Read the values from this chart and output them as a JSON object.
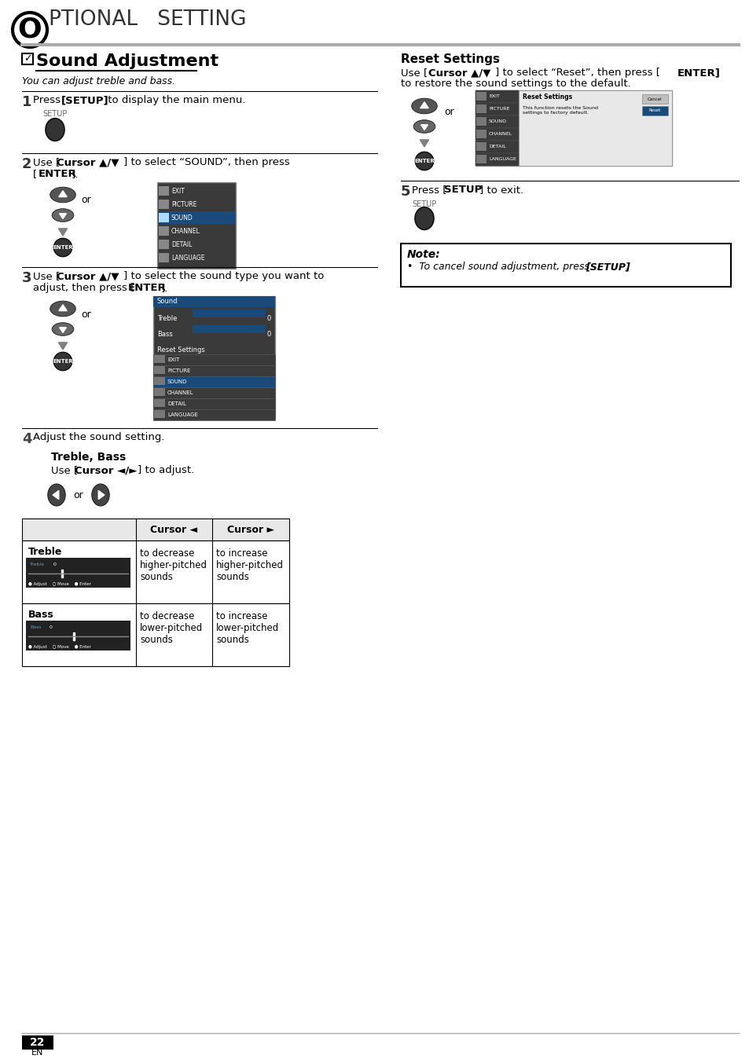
{
  "title_letter": "O",
  "title_text": "PTIONAL   SETTING",
  "section_title": "Sound Adjustment",
  "section_subtitle": "You can adjust treble and bass.",
  "step1_text": "Press [SETUP] to display the main menu.",
  "step2_text": "Use [Cursor ▲/▼] to select “SOUND”, then press\n[ENTER].",
  "step3_text": "Use [Cursor ▲/▼] to select the sound type you want to\nadjust, then press [ENTER].",
  "step4_text": "Adjust the sound setting.",
  "step5_text": "Press [SETUP] to exit.",
  "reset_title": "Reset Settings",
  "reset_text": "Use [Cursor ▲/▼] to select “Reset”, then press [ENTER]\nto restore the sound settings to the default.",
  "treble_bass_title": "Treble, Bass",
  "treble_bass_subtitle": "Use [Cursor ◄/►] to adjust.",
  "note_title": "Note:",
  "note_text": "•  To cancel sound adjustment, press [SETUP].",
  "table_col2": "Cursor ◄",
  "table_col3": "Cursor ►",
  "treble_row_label": "Treble",
  "treble_cursor_left": "to decrease\nhigher-pitched\nsounds",
  "treble_cursor_right": "to increase\nhigher-pitched\nsounds",
  "bass_row_label": "Bass",
  "bass_cursor_left": "to decrease\nlower-pitched\nsounds",
  "bass_cursor_right": "to increase\nlower-pitched\nsounds",
  "bg_color": "#ffffff",
  "text_color": "#000000",
  "gray_line_color": "#aaaaaa",
  "menu_bg": "#3a3a3a",
  "menu_highlight": "#5a7a9a",
  "menu_items": [
    "EXIT",
    "PICTURE",
    "SOUND",
    "CHANNEL",
    "DETAIL",
    "LANGUAGE"
  ],
  "sound_menu_items": [
    "Treble",
    "Bass",
    "Reset Settings"
  ],
  "page_number": "22"
}
